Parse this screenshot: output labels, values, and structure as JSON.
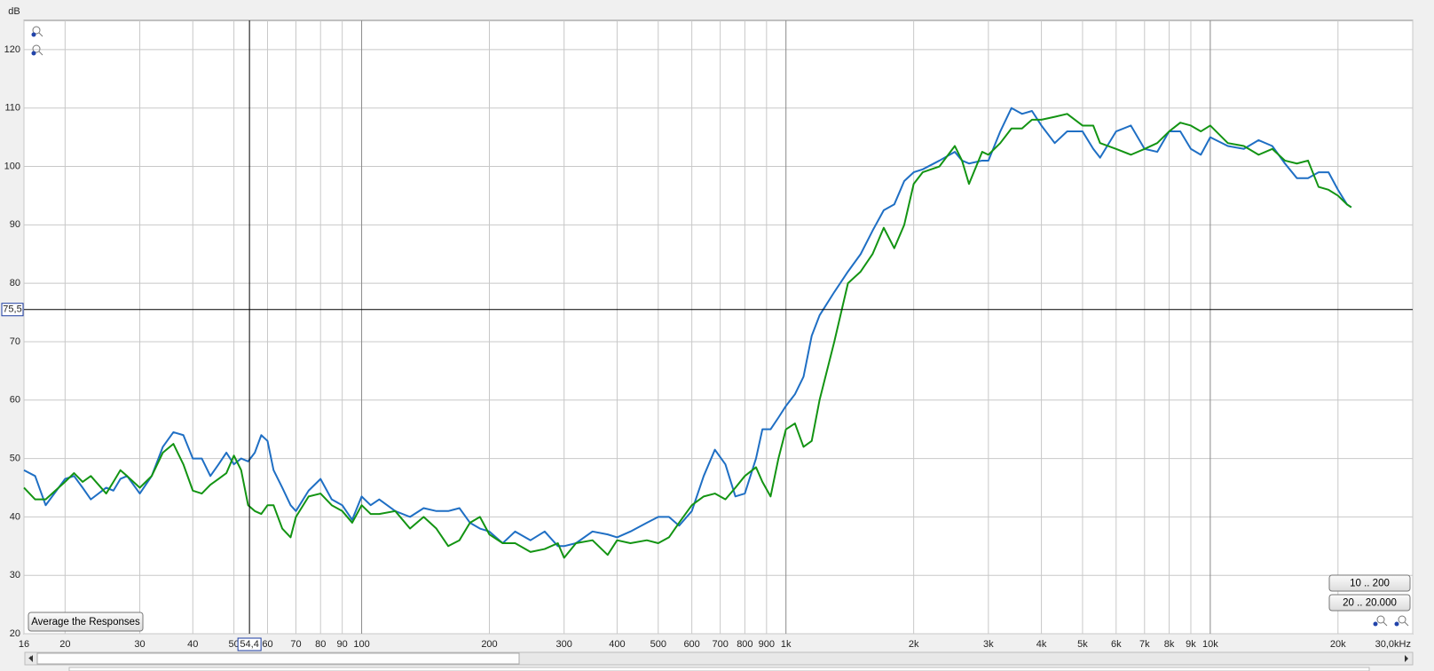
{
  "chart_data": {
    "type": "line",
    "y_label": "dB",
    "xlim": [
      16,
      30000
    ],
    "ylim": [
      20,
      125
    ],
    "log_x": true,
    "grid": true,
    "xticks": [
      16,
      20,
      30,
      40,
      50,
      60,
      70,
      80,
      90,
      100,
      200,
      300,
      400,
      500,
      600,
      700,
      800,
      900,
      {
        "value": 1000,
        "label": "1k"
      },
      {
        "value": 2000,
        "label": "2k"
      },
      {
        "value": 3000,
        "label": "3k"
      },
      {
        "value": 4000,
        "label": "4k"
      },
      {
        "value": 5000,
        "label": "5k"
      },
      {
        "value": 6000,
        "label": "6k"
      },
      {
        "value": 7000,
        "label": "7k"
      },
      {
        "value": 8000,
        "label": "8k"
      },
      {
        "value": 9000,
        "label": "9k"
      },
      {
        "value": 10000,
        "label": "10k"
      },
      {
        "value": 20000,
        "label": "20k"
      },
      {
        "value": 30000,
        "label": "30,0kHz"
      }
    ],
    "yticks": [
      20,
      30,
      40,
      50,
      60,
      70,
      80,
      90,
      100,
      110,
      120
    ],
    "cursor": {
      "x": {
        "value": 54.4,
        "label": "54,4"
      },
      "y": {
        "value": 75.5,
        "label": "75,5"
      }
    },
    "x": [
      16,
      17,
      18,
      20,
      21,
      22,
      23,
      25,
      26,
      27,
      28,
      30,
      32,
      34,
      36,
      38,
      40,
      42,
      44,
      46,
      48,
      50,
      52,
      54,
      56,
      58,
      60,
      62,
      65,
      68,
      70,
      75,
      80,
      85,
      90,
      95,
      100,
      105,
      110,
      120,
      130,
      140,
      150,
      160,
      170,
      180,
      190,
      200,
      215,
      230,
      250,
      270,
      290,
      300,
      320,
      350,
      380,
      400,
      430,
      470,
      500,
      530,
      560,
      600,
      640,
      680,
      720,
      760,
      800,
      850,
      880,
      920,
      960,
      1000,
      1050,
      1100,
      1150,
      1200,
      1300,
      1400,
      1500,
      1600,
      1700,
      1800,
      1900,
      2000,
      2100,
      2300,
      2500,
      2600,
      2700,
      2900,
      3000,
      3200,
      3400,
      3600,
      3800,
      4000,
      4300,
      4600,
      5000,
      5300,
      5500,
      6000,
      6500,
      7000,
      7500,
      8000,
      8500,
      9000,
      9500,
      10000,
      11000,
      12000,
      13000,
      14000,
      15000,
      16000,
      17000,
      18000,
      19000,
      20000,
      21000,
      21500
    ],
    "series": [
      {
        "color": "#1f6fc4",
        "values": [
          48,
          47,
          42,
          46.5,
          47,
          45,
          43,
          45,
          44.5,
          46.5,
          47,
          44,
          47,
          52,
          54.5,
          54,
          50,
          50,
          47,
          49,
          51,
          49,
          50,
          49.5,
          51,
          54,
          53,
          48,
          45,
          42,
          41,
          44.5,
          46.5,
          43,
          42,
          39.5,
          43.5,
          42,
          43,
          41,
          40,
          41.5,
          41,
          41,
          41.5,
          39,
          38,
          37.5,
          35.5,
          37.5,
          36,
          37.5,
          35,
          35,
          35.5,
          37.5,
          37,
          36.5,
          37.5,
          39,
          40,
          40,
          38.5,
          41,
          47,
          51.5,
          49,
          43.5,
          44,
          50,
          55,
          55,
          57,
          59,
          61,
          64,
          71,
          74.5,
          78.5,
          82,
          85,
          89,
          92.5,
          93.5,
          97.5,
          99,
          99.5,
          101,
          102.5,
          101,
          100.5,
          101,
          101,
          106,
          110,
          109,
          109.5,
          107,
          104,
          106,
          106,
          103,
          101.5,
          106,
          107,
          103,
          102.5,
          106,
          106,
          103,
          102,
          105,
          103.5,
          103,
          104.5,
          103.5,
          100.5,
          98,
          98,
          99,
          99,
          96,
          93.5,
          93
        ]
      },
      {
        "color": "#139413",
        "values": [
          45,
          43,
          43,
          46,
          47.5,
          46,
          47,
          44,
          46,
          48,
          47,
          45,
          47,
          51,
          52.5,
          49,
          44.5,
          44,
          45.5,
          46.5,
          47.5,
          50.5,
          48,
          42,
          41,
          40.5,
          42,
          42,
          38,
          36.5,
          40,
          43.5,
          44,
          42,
          41,
          39,
          42,
          40.5,
          40.5,
          41,
          38,
          40,
          38,
          35,
          36,
          39,
          40,
          37,
          35.5,
          35.5,
          34,
          34.5,
          35.5,
          33,
          35.5,
          36,
          33.5,
          36,
          35.5,
          36,
          35.5,
          36.5,
          39,
          42,
          43.5,
          44,
          43,
          45,
          47,
          48.5,
          46,
          43.5,
          50,
          55,
          56,
          52,
          53,
          60,
          70,
          80,
          82,
          85,
          89.5,
          86,
          90,
          97,
          99,
          100,
          103.5,
          101,
          97,
          102.5,
          102,
          104,
          106.5,
          106.5,
          108,
          108,
          108.5,
          109,
          107,
          107,
          104,
          103,
          102,
          103,
          104,
          106,
          107.5,
          107,
          106,
          107,
          104,
          103.5,
          102,
          103,
          101,
          100.5,
          101,
          96.5,
          96,
          95,
          93.5,
          93
        ]
      }
    ]
  },
  "controls": {
    "average": "Average the Responses",
    "range_low": "10 .. 200",
    "range_full": "20 .. 20.000"
  }
}
